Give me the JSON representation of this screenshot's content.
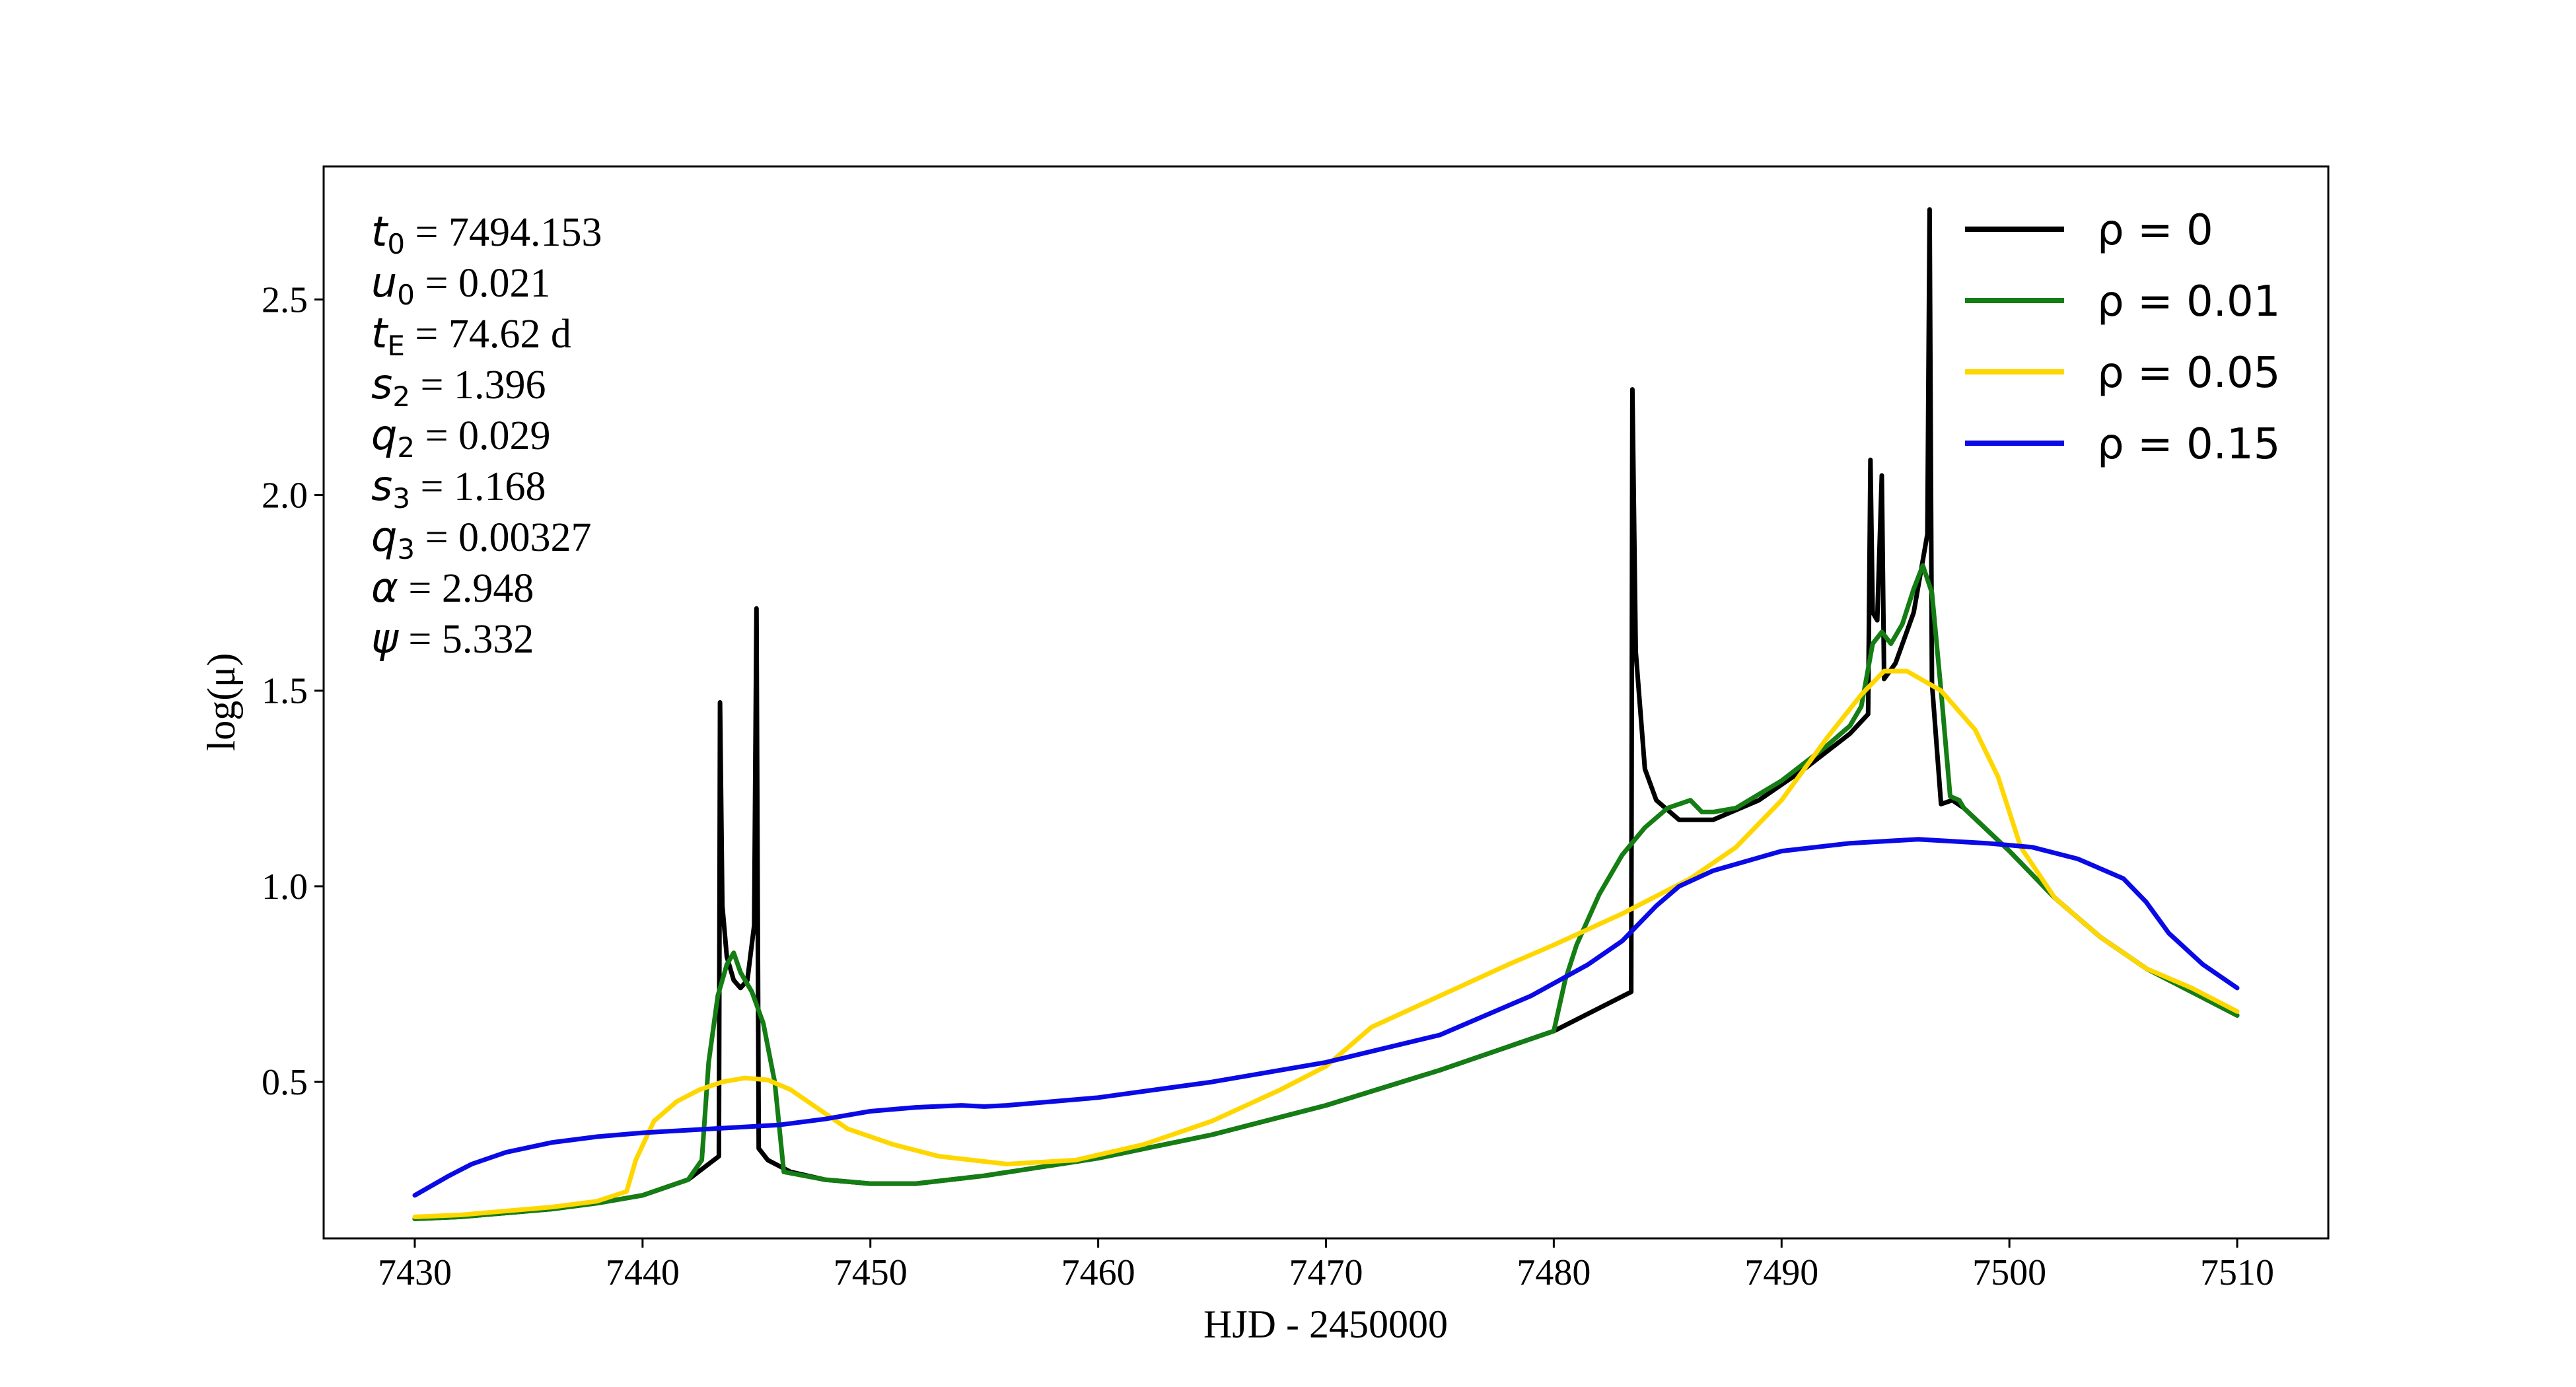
{
  "chart_data": {
    "type": "line",
    "xlabel": "HJD - 2450000",
    "ylabel": "log(μ)",
    "xlim": [
      7426,
      7514
    ],
    "ylim": [
      0.1,
      2.84
    ],
    "xticks": [
      7430,
      7440,
      7450,
      7460,
      7470,
      7480,
      7490,
      7500,
      7510
    ],
    "yticks": [
      0.5,
      1.0,
      1.5,
      2.0,
      2.5
    ],
    "ytick_labels": [
      "0.5",
      "1.0",
      "1.5",
      "2.0",
      "2.5"
    ],
    "grid": false,
    "legend_position": "top-right",
    "parameters": [
      {
        "sym": "t",
        "sub": "0",
        "rest": " = 7494.153"
      },
      {
        "sym": "u",
        "sub": "0",
        "rest": " = 0.021"
      },
      {
        "sym": "t",
        "sub": "E",
        "rest": " = 74.62 d"
      },
      {
        "sym": "s",
        "sub": "2",
        "rest": " = 1.396"
      },
      {
        "sym": "q",
        "sub": "2",
        "rest": " = 0.029"
      },
      {
        "sym": "s",
        "sub": "3",
        "rest": " = 1.168"
      },
      {
        "sym": "q",
        "sub": "3",
        "rest": " = 0.00327"
      },
      {
        "sym": "α",
        "sub": "",
        "rest": " = 2.948"
      },
      {
        "sym": "ψ",
        "sub": "",
        "rest": " = 5.332"
      }
    ],
    "series": [
      {
        "name": "ρ = 0",
        "color": "#000000",
        "points": [
          [
            7430,
            0.15
          ],
          [
            7432,
            0.155
          ],
          [
            7434,
            0.165
          ],
          [
            7436,
            0.175
          ],
          [
            7438,
            0.19
          ],
          [
            7440,
            0.21
          ],
          [
            7442,
            0.25
          ],
          [
            7443.35,
            0.31
          ],
          [
            7443.4,
            1.47
          ],
          [
            7443.5,
            0.95
          ],
          [
            7443.7,
            0.82
          ],
          [
            7444.0,
            0.76
          ],
          [
            7444.3,
            0.74
          ],
          [
            7444.6,
            0.76
          ],
          [
            7444.9,
            0.9
          ],
          [
            7445.0,
            1.71
          ],
          [
            7445.1,
            0.33
          ],
          [
            7445.5,
            0.3
          ],
          [
            7446.5,
            0.27
          ],
          [
            7448,
            0.25
          ],
          [
            7450,
            0.24
          ],
          [
            7452,
            0.24
          ],
          [
            7455,
            0.26
          ],
          [
            7460,
            0.305
          ],
          [
            7465,
            0.365
          ],
          [
            7470,
            0.44
          ],
          [
            7475,
            0.53
          ],
          [
            7480,
            0.63
          ],
          [
            7483.4,
            0.73
          ],
          [
            7483.45,
            2.27
          ],
          [
            7483.6,
            1.6
          ],
          [
            7484,
            1.3
          ],
          [
            7484.5,
            1.22
          ],
          [
            7485.5,
            1.17
          ],
          [
            7487,
            1.17
          ],
          [
            7489,
            1.22
          ],
          [
            7491,
            1.3
          ],
          [
            7493,
            1.39
          ],
          [
            7493.8,
            1.44
          ],
          [
            7493.9,
            2.09
          ],
          [
            7494.0,
            1.7
          ],
          [
            7494.2,
            1.68
          ],
          [
            7494.4,
            2.05
          ],
          [
            7494.5,
            1.53
          ],
          [
            7495,
            1.57
          ],
          [
            7495.8,
            1.7
          ],
          [
            7496.4,
            1.9
          ],
          [
            7496.5,
            2.73
          ],
          [
            7496.6,
            1.52
          ],
          [
            7497,
            1.21
          ],
          [
            7497.5,
            1.22
          ],
          [
            7498,
            1.2
          ],
          [
            7500,
            1.09
          ],
          [
            7502,
            0.97
          ],
          [
            7504,
            0.87
          ],
          [
            7506,
            0.79
          ],
          [
            7508,
            0.73
          ],
          [
            7510,
            0.67
          ]
        ]
      },
      {
        "name": "ρ = 0.01",
        "color": "#147d14",
        "points": [
          [
            7430,
            0.15
          ],
          [
            7432,
            0.155
          ],
          [
            7434,
            0.165
          ],
          [
            7436,
            0.175
          ],
          [
            7438,
            0.19
          ],
          [
            7440,
            0.21
          ],
          [
            7442,
            0.25
          ],
          [
            7442.6,
            0.3
          ],
          [
            7442.9,
            0.55
          ],
          [
            7443.3,
            0.72
          ],
          [
            7443.7,
            0.8
          ],
          [
            7444.0,
            0.83
          ],
          [
            7444.3,
            0.78
          ],
          [
            7444.8,
            0.73
          ],
          [
            7445.3,
            0.65
          ],
          [
            7445.8,
            0.5
          ],
          [
            7446.2,
            0.27
          ],
          [
            7448,
            0.25
          ],
          [
            7450,
            0.24
          ],
          [
            7452,
            0.24
          ],
          [
            7455,
            0.26
          ],
          [
            7460,
            0.305
          ],
          [
            7465,
            0.365
          ],
          [
            7470,
            0.44
          ],
          [
            7475,
            0.53
          ],
          [
            7480,
            0.63
          ],
          [
            7480.5,
            0.76
          ],
          [
            7481,
            0.85
          ],
          [
            7482,
            0.98
          ],
          [
            7483,
            1.08
          ],
          [
            7484,
            1.15
          ],
          [
            7485,
            1.2
          ],
          [
            7486,
            1.22
          ],
          [
            7486.5,
            1.19
          ],
          [
            7487,
            1.19
          ],
          [
            7488,
            1.2
          ],
          [
            7490,
            1.27
          ],
          [
            7492,
            1.36
          ],
          [
            7493,
            1.41
          ],
          [
            7493.5,
            1.46
          ],
          [
            7494,
            1.62
          ],
          [
            7494.4,
            1.65
          ],
          [
            7494.8,
            1.62
          ],
          [
            7495.3,
            1.67
          ],
          [
            7495.8,
            1.76
          ],
          [
            7496.2,
            1.82
          ],
          [
            7496.6,
            1.75
          ],
          [
            7497.0,
            1.5
          ],
          [
            7497.4,
            1.23
          ],
          [
            7497.8,
            1.22
          ],
          [
            7498,
            1.2
          ],
          [
            7500,
            1.09
          ],
          [
            7502,
            0.97
          ],
          [
            7504,
            0.87
          ],
          [
            7506,
            0.79
          ],
          [
            7508,
            0.73
          ],
          [
            7510,
            0.67
          ]
        ]
      },
      {
        "name": "ρ = 0.05",
        "color": "#ffd700",
        "points": [
          [
            7430,
            0.155
          ],
          [
            7432,
            0.16
          ],
          [
            7434,
            0.17
          ],
          [
            7436,
            0.18
          ],
          [
            7438,
            0.195
          ],
          [
            7439.3,
            0.22
          ],
          [
            7439.7,
            0.3
          ],
          [
            7440.5,
            0.4
          ],
          [
            7441.5,
            0.45
          ],
          [
            7442.5,
            0.48
          ],
          [
            7443.5,
            0.5
          ],
          [
            7444.5,
            0.51
          ],
          [
            7445.5,
            0.505
          ],
          [
            7446.5,
            0.48
          ],
          [
            7447.5,
            0.44
          ],
          [
            7449,
            0.38
          ],
          [
            7451,
            0.34
          ],
          [
            7453,
            0.31
          ],
          [
            7456,
            0.29
          ],
          [
            7459,
            0.3
          ],
          [
            7462,
            0.34
          ],
          [
            7465,
            0.4
          ],
          [
            7468,
            0.48
          ],
          [
            7470,
            0.54
          ],
          [
            7471,
            0.59
          ],
          [
            7472,
            0.64
          ],
          [
            7475,
            0.72
          ],
          [
            7478,
            0.8
          ],
          [
            7480,
            0.85
          ],
          [
            7483,
            0.93
          ],
          [
            7486,
            1.02
          ],
          [
            7488,
            1.1
          ],
          [
            7490,
            1.22
          ],
          [
            7492,
            1.38
          ],
          [
            7493.5,
            1.49
          ],
          [
            7494.5,
            1.55
          ],
          [
            7495.5,
            1.55
          ],
          [
            7497,
            1.5
          ],
          [
            7498.5,
            1.4
          ],
          [
            7499.5,
            1.28
          ],
          [
            7500.5,
            1.1
          ],
          [
            7502,
            0.97
          ],
          [
            7504,
            0.87
          ],
          [
            7506,
            0.79
          ],
          [
            7508,
            0.74
          ],
          [
            7510,
            0.68
          ]
        ]
      },
      {
        "name": "ρ = 0.15",
        "color": "#0a0ae6",
        "points": [
          [
            7430,
            0.21
          ],
          [
            7431.5,
            0.26
          ],
          [
            7432.5,
            0.29
          ],
          [
            7434,
            0.32
          ],
          [
            7436,
            0.345
          ],
          [
            7438,
            0.36
          ],
          [
            7440,
            0.37
          ],
          [
            7443,
            0.38
          ],
          [
            7446,
            0.39
          ],
          [
            7448,
            0.405
          ],
          [
            7450,
            0.425
          ],
          [
            7452,
            0.435
          ],
          [
            7454,
            0.44
          ],
          [
            7455,
            0.437
          ],
          [
            7456,
            0.44
          ],
          [
            7460,
            0.46
          ],
          [
            7465,
            0.5
          ],
          [
            7470,
            0.55
          ],
          [
            7475,
            0.62
          ],
          [
            7479,
            0.72
          ],
          [
            7481.5,
            0.8
          ],
          [
            7483,
            0.86
          ],
          [
            7484.5,
            0.95
          ],
          [
            7485.5,
            1.0
          ],
          [
            7487,
            1.04
          ],
          [
            7490,
            1.09
          ],
          [
            7493,
            1.11
          ],
          [
            7496,
            1.12
          ],
          [
            7499,
            1.11
          ],
          [
            7501,
            1.1
          ],
          [
            7503,
            1.07
          ],
          [
            7505,
            1.02
          ],
          [
            7506,
            0.96
          ],
          [
            7507,
            0.88
          ],
          [
            7508.5,
            0.8
          ],
          [
            7510,
            0.74
          ]
        ]
      }
    ]
  }
}
